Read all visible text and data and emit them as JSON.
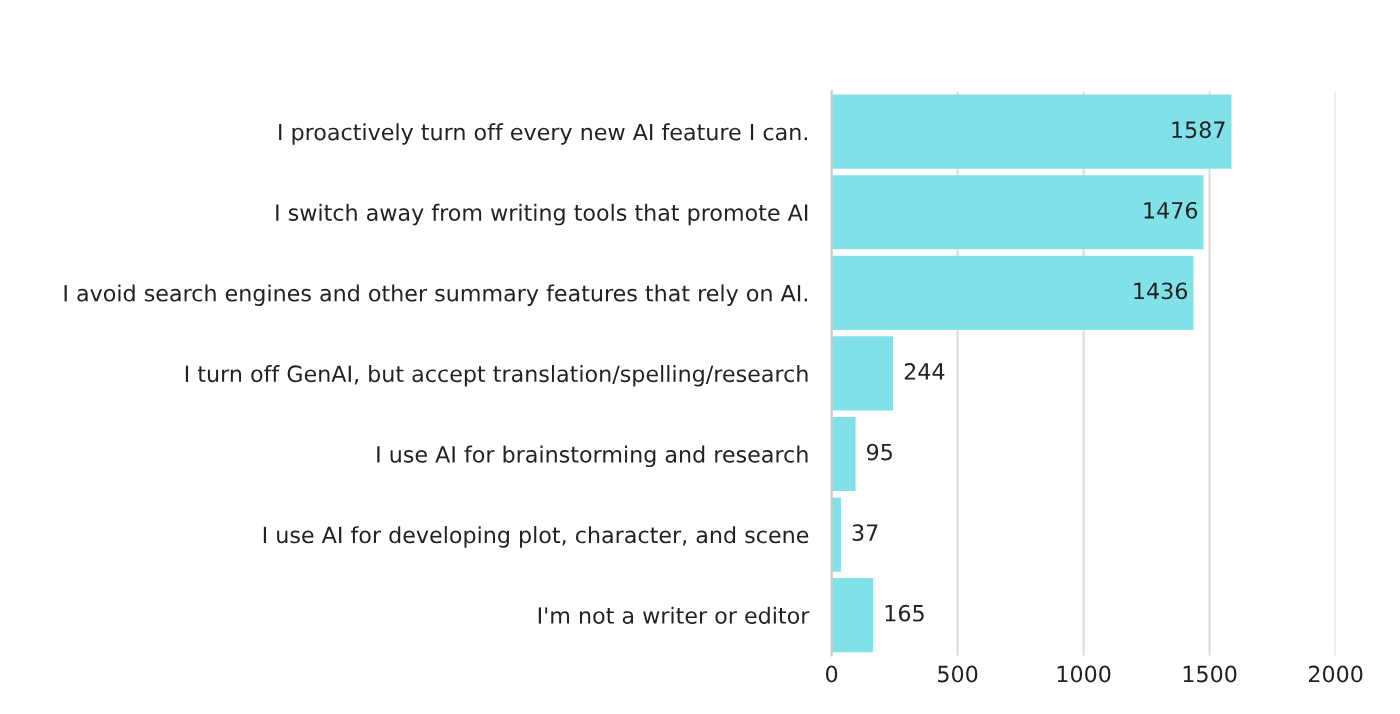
{
  "chart_data": {
    "type": "bar",
    "orientation": "horizontal",
    "categories": [
      "I proactively turn off every new AI feature I can.",
      "I switch away from writing tools that promote AI",
      "I avoid search engines and other summary features that rely on AI.",
      "I turn off GenAI, but accept translation/spelling/research",
      "I use AI for brainstorming and research",
      "I use AI for developing plot, character, and scene",
      "I'm not a writer or editor"
    ],
    "values": [
      1587,
      1476,
      1436,
      244,
      95,
      37,
      165
    ],
    "color": "#80e2e8",
    "xlim": [
      0,
      2000
    ],
    "xticks": [
      0,
      500,
      1000,
      1500,
      2000
    ],
    "grid": "x",
    "data_labels": true
  }
}
